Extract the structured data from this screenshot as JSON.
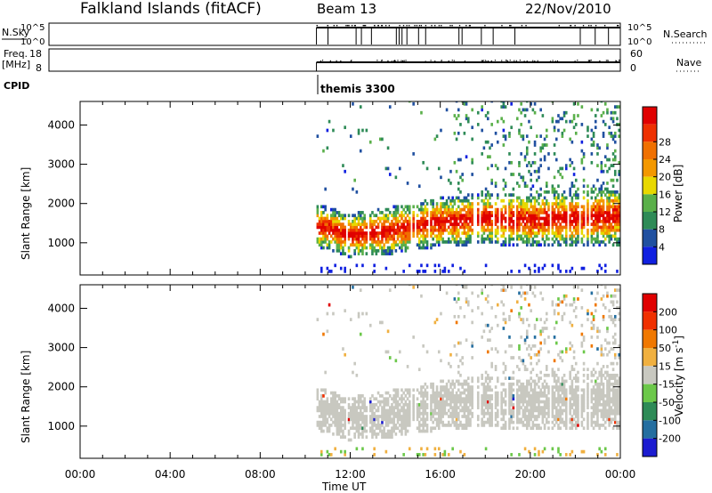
{
  "header": {
    "title": "Falkland Islands (fitACF)",
    "beam": "Beam 13",
    "date": "22/Nov/2010"
  },
  "top_panels": {
    "nsky_label": "N.Sky",
    "nsky_ticks": [
      "10^5",
      "10^0"
    ],
    "nsearch_label": "N.Search",
    "nsearch_ticks": [
      "10^5",
      "10^0"
    ],
    "freq_label": "Freq.",
    "freq_unit": "[MHz]",
    "freq_ticks": [
      "18",
      "8"
    ],
    "nave_label": "Nave",
    "nave_ticks": [
      "60",
      "0"
    ],
    "cpid_label": "CPID",
    "cpid_value": "themis 3300"
  },
  "chart_data": [
    {
      "type": "heatmap",
      "name": "power",
      "xlabel": "Time UT",
      "ylabel": "Slant Range [km]",
      "x_ticks": [
        "00:00",
        "04:00",
        "08:00",
        "12:00",
        "16:00",
        "20:00",
        "00:00"
      ],
      "xlim_hours": [
        0,
        24
      ],
      "ylim_km": [
        180,
        4600
      ],
      "y_ticks": [
        1000,
        2000,
        3000,
        4000
      ],
      "colorbar_label": "Power [dB]",
      "colorbar_ticks": [
        "4",
        "8",
        "12",
        "16",
        "20",
        "24",
        "28"
      ],
      "colorbar_range": [
        0,
        30
      ],
      "colors": [
        "#1020e0",
        "#2050a0",
        "#2e8b57",
        "#5ab04a",
        "#e8d800",
        "#f39800",
        "#f07000",
        "#ee3000",
        "#e00000"
      ],
      "data_start_hour": 10.5,
      "band_centers_km": [
        [
          10.5,
          1400
        ],
        [
          12,
          1150
        ],
        [
          14,
          1300
        ],
        [
          16,
          1500
        ],
        [
          18,
          1600
        ],
        [
          20,
          1550
        ],
        [
          22,
          1600
        ],
        [
          24,
          1650
        ]
      ]
    },
    {
      "type": "heatmap",
      "name": "velocity",
      "xlabel": "Time UT",
      "ylabel": "Slant Range [km]",
      "x_ticks": [
        "00:00",
        "04:00",
        "08:00",
        "12:00",
        "16:00",
        "20:00",
        "00:00"
      ],
      "xlim_hours": [
        0,
        24
      ],
      "ylim_km": [
        180,
        4600
      ],
      "y_ticks": [
        1000,
        2000,
        3000,
        4000
      ],
      "colorbar_label": "Velocity [m s^-1]",
      "colorbar_ticks": [
        "200",
        "100",
        "50",
        "15",
        "-15",
        "-50",
        "-100",
        "-200"
      ],
      "colors": [
        "#1c1cd0",
        "#246ea0",
        "#2e8b57",
        "#6cc84a",
        "#c8c8c0",
        "#f0b040",
        "#f07800",
        "#f03000",
        "#e00000"
      ],
      "data_start_hour": 10.5
    }
  ]
}
